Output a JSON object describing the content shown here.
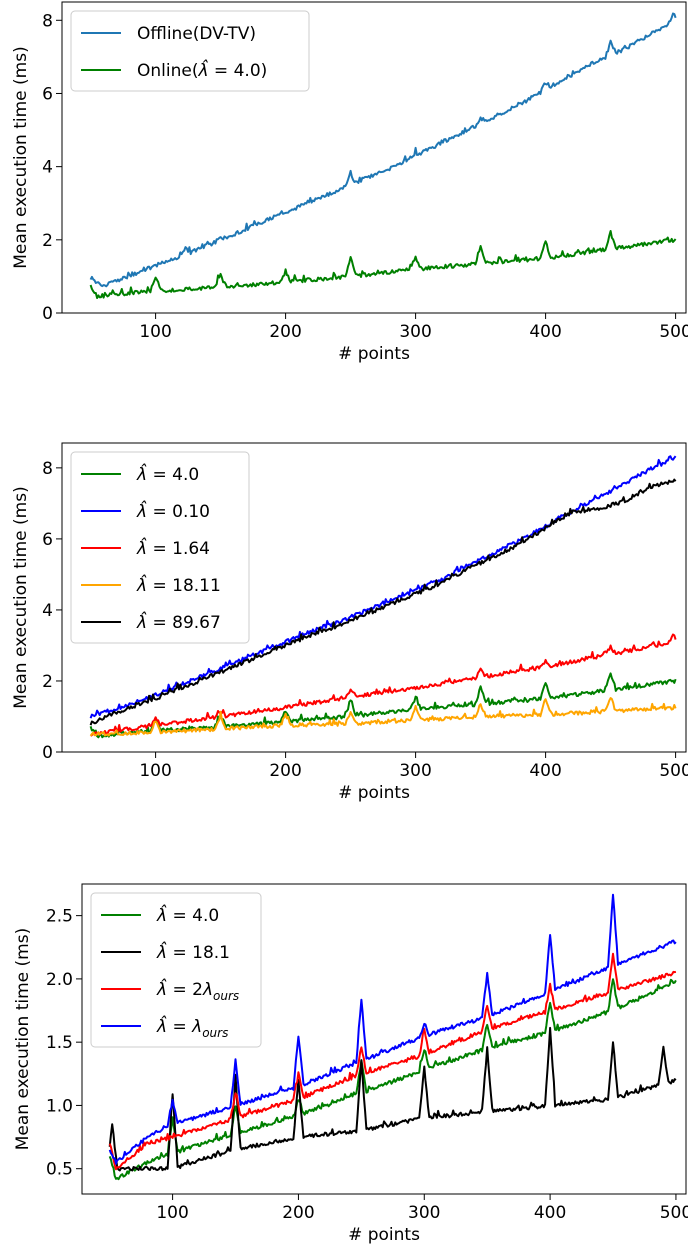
{
  "chart_data": [
    {
      "type": "line",
      "title": "",
      "xlabel": "# points",
      "ylabel": "Mean execution time (ms)",
      "xlim": [
        28,
        508
      ],
      "ylim": [
        0,
        8.5
      ],
      "xticks": [
        100,
        200,
        300,
        400,
        500
      ],
      "yticks": [
        0,
        2,
        4,
        6,
        8
      ],
      "grid": false,
      "legend_position": "upper-left",
      "series": [
        {
          "name": "Offline(DV-TV)",
          "color": "#1f77b4",
          "x": [
            50,
            60,
            80,
            100,
            120,
            140,
            160,
            180,
            200,
            220,
            240,
            260,
            280,
            300,
            320,
            340,
            360,
            380,
            400,
            420,
            440,
            460,
            480,
            500
          ],
          "y": [
            0.9,
            0.75,
            1.0,
            1.3,
            1.55,
            1.85,
            2.15,
            2.45,
            2.75,
            3.05,
            3.35,
            3.65,
            3.95,
            4.3,
            4.65,
            5.0,
            5.35,
            5.7,
            6.1,
            6.5,
            6.9,
            7.2,
            7.6,
            8.0
          ],
          "spikes": [
            [
              123,
              1.75
            ],
            [
              150,
              2.05
            ],
            [
              196,
              2.75
            ],
            [
              250,
              3.8
            ],
            [
              300,
              4.35
            ],
            [
              350,
              5.3
            ],
            [
              400,
              6.3
            ],
            [
              450,
              7.4
            ],
            [
              498,
              8.15
            ]
          ]
        },
        {
          "name": "Online($\\hat{\\lambda}=4.0$)",
          "color": "#008000",
          "x": [
            50,
            55,
            80,
            100,
            150,
            200,
            250,
            300,
            350,
            400,
            450,
            500
          ],
          "y": [
            0.75,
            0.45,
            0.55,
            0.6,
            0.7,
            0.85,
            1.0,
            1.2,
            1.35,
            1.5,
            1.75,
            2.0
          ],
          "spikes": [
            [
              100,
              0.95
            ],
            [
              150,
              1.05
            ],
            [
              200,
              1.15
            ],
            [
              250,
              1.5
            ],
            [
              300,
              1.55
            ],
            [
              350,
              1.85
            ],
            [
              400,
              1.95
            ],
            [
              450,
              2.2
            ]
          ]
        }
      ]
    },
    {
      "type": "line",
      "title": "",
      "xlabel": "# points",
      "ylabel": "Mean execution time (ms)",
      "xlim": [
        28,
        508
      ],
      "ylim": [
        0,
        8.7
      ],
      "xticks": [
        100,
        200,
        300,
        400,
        500
      ],
      "yticks": [
        0,
        2,
        4,
        6,
        8
      ],
      "grid": false,
      "legend_position": "upper-left",
      "series": [
        {
          "name": "$\\hat{\\lambda}=4.0$",
          "color": "#008000",
          "x": [
            50,
            55,
            80,
            100,
            150,
            200,
            250,
            300,
            350,
            400,
            450,
            500
          ],
          "y": [
            0.7,
            0.45,
            0.55,
            0.6,
            0.7,
            0.85,
            1.0,
            1.2,
            1.35,
            1.5,
            1.75,
            2.0
          ],
          "spikes": [
            [
              100,
              0.95
            ],
            [
              150,
              1.05
            ],
            [
              200,
              1.15
            ],
            [
              250,
              1.5
            ],
            [
              300,
              1.55
            ],
            [
              350,
              1.85
            ],
            [
              400,
              1.95
            ],
            [
              450,
              2.2
            ]
          ]
        },
        {
          "name": "$\\hat{\\lambda}=0.10$",
          "color": "#0000ff",
          "x": [
            50,
            60,
            80,
            100,
            120,
            140,
            160,
            180,
            200,
            220,
            240,
            260,
            280,
            300,
            320,
            340,
            360,
            380,
            400,
            420,
            440,
            460,
            480,
            500
          ],
          "y": [
            1.0,
            1.1,
            1.35,
            1.6,
            1.9,
            2.2,
            2.5,
            2.8,
            3.1,
            3.4,
            3.65,
            3.95,
            4.25,
            4.55,
            4.85,
            5.25,
            5.6,
            5.95,
            6.35,
            6.75,
            7.15,
            7.55,
            7.95,
            8.3
          ]
        },
        {
          "name": "$\\hat{\\lambda}=1.64$",
          "color": "#ff0000",
          "x": [
            50,
            100,
            150,
            200,
            250,
            300,
            350,
            400,
            450,
            500
          ],
          "y": [
            0.5,
            0.75,
            1.0,
            1.25,
            1.55,
            1.8,
            2.1,
            2.4,
            2.75,
            3.1
          ],
          "spikes": [
            [
              100,
              0.95
            ],
            [
              150,
              1.15
            ],
            [
              250,
              1.75
            ],
            [
              350,
              2.3
            ],
            [
              400,
              2.55
            ],
            [
              450,
              2.95
            ],
            [
              498,
              3.3
            ]
          ]
        },
        {
          "name": "$\\hat{\\lambda}=18.11$",
          "color": "#ffa500",
          "x": [
            50,
            100,
            150,
            200,
            250,
            300,
            350,
            400,
            450,
            500
          ],
          "y": [
            0.5,
            0.55,
            0.65,
            0.75,
            0.8,
            0.9,
            1.0,
            1.05,
            1.15,
            1.25
          ],
          "spikes": [
            [
              100,
              0.9
            ],
            [
              150,
              1.0
            ],
            [
              200,
              1.05
            ],
            [
              250,
              1.15
            ],
            [
              300,
              1.25
            ],
            [
              350,
              1.35
            ],
            [
              400,
              1.5
            ],
            [
              450,
              1.55
            ]
          ]
        },
        {
          "name": "$\\hat{\\lambda}=89.67$",
          "color": "#000000",
          "x": [
            50,
            60,
            80,
            100,
            120,
            140,
            160,
            180,
            200,
            220,
            240,
            260,
            280,
            300,
            320,
            340,
            360,
            380,
            400,
            420,
            440,
            460,
            480,
            500
          ],
          "y": [
            0.8,
            0.95,
            1.25,
            1.5,
            1.8,
            2.1,
            2.4,
            2.7,
            3.0,
            3.3,
            3.55,
            3.85,
            4.15,
            4.45,
            4.75,
            5.15,
            5.5,
            5.85,
            6.3,
            6.75,
            6.85,
            7.05,
            7.45,
            7.65
          ]
        }
      ]
    },
    {
      "type": "line",
      "title": "",
      "xlabel": "# points",
      "ylabel": "Mean execution time (ms)",
      "xlim": [
        28,
        508
      ],
      "ylim": [
        0.3,
        2.75
      ],
      "xticks": [
        100,
        200,
        300,
        400,
        500
      ],
      "yticks": [
        0.5,
        1.0,
        1.5,
        2.0,
        2.5
      ],
      "grid": false,
      "legend_position": "upper-left",
      "series": [
        {
          "name": "$\\hat{\\lambda}=4.0$",
          "color": "#008000",
          "x": [
            50,
            55,
            80,
            100,
            150,
            200,
            250,
            300,
            350,
            400,
            450,
            500
          ],
          "y": [
            0.6,
            0.42,
            0.55,
            0.62,
            0.78,
            0.92,
            1.1,
            1.28,
            1.45,
            1.58,
            1.75,
            1.98
          ],
          "spikes": [
            [
              100,
              0.9
            ],
            [
              150,
              1.0
            ],
            [
              200,
              1.05
            ],
            [
              250,
              1.35
            ],
            [
              300,
              1.45
            ],
            [
              350,
              1.65
            ],
            [
              400,
              1.8
            ],
            [
              450,
              2.0
            ]
          ]
        },
        {
          "name": "$\\hat{\\lambda}=18.1$",
          "color": "#000000",
          "x": [
            50,
            100,
            150,
            200,
            250,
            300,
            350,
            400,
            450,
            500
          ],
          "y": [
            0.5,
            0.5,
            0.65,
            0.75,
            0.8,
            0.9,
            0.95,
            1.0,
            1.05,
            1.2
          ],
          "spikes": [
            [
              52,
              0.85
            ],
            [
              100,
              1.1
            ],
            [
              150,
              1.2
            ],
            [
              200,
              1.2
            ],
            [
              250,
              1.35
            ],
            [
              300,
              1.3
            ],
            [
              350,
              1.45
            ],
            [
              400,
              1.6
            ],
            [
              450,
              1.5
            ],
            [
              490,
              1.45
            ]
          ]
        },
        {
          "name": "$\\hat{\\lambda}=2\\lambda_{ours}$",
          "color": "#ff0000",
          "x": [
            50,
            55,
            80,
            100,
            150,
            200,
            250,
            300,
            350,
            400,
            450,
            500
          ],
          "y": [
            0.7,
            0.5,
            0.7,
            0.75,
            0.9,
            1.05,
            1.25,
            1.4,
            1.6,
            1.75,
            1.9,
            2.05
          ],
          "spikes": [
            [
              150,
              1.1
            ],
            [
              200,
              1.25
            ],
            [
              250,
              1.45
            ],
            [
              300,
              1.6
            ],
            [
              350,
              1.8
            ],
            [
              400,
              1.95
            ],
            [
              450,
              2.2
            ]
          ]
        },
        {
          "name": "$\\hat{\\lambda}=\\lambda_{ours}$",
          "color": "#0000ff",
          "x": [
            50,
            55,
            80,
            100,
            150,
            200,
            250,
            300,
            350,
            400,
            450,
            500
          ],
          "y": [
            0.65,
            0.55,
            0.75,
            0.85,
            1.0,
            1.15,
            1.35,
            1.55,
            1.7,
            1.9,
            2.1,
            2.3
          ],
          "spikes": [
            [
              100,
              1.05
            ],
            [
              150,
              1.35
            ],
            [
              200,
              1.55
            ],
            [
              250,
              1.85
            ],
            [
              300,
              1.65
            ],
            [
              350,
              2.05
            ],
            [
              400,
              2.35
            ],
            [
              450,
              2.68
            ]
          ]
        }
      ]
    }
  ]
}
